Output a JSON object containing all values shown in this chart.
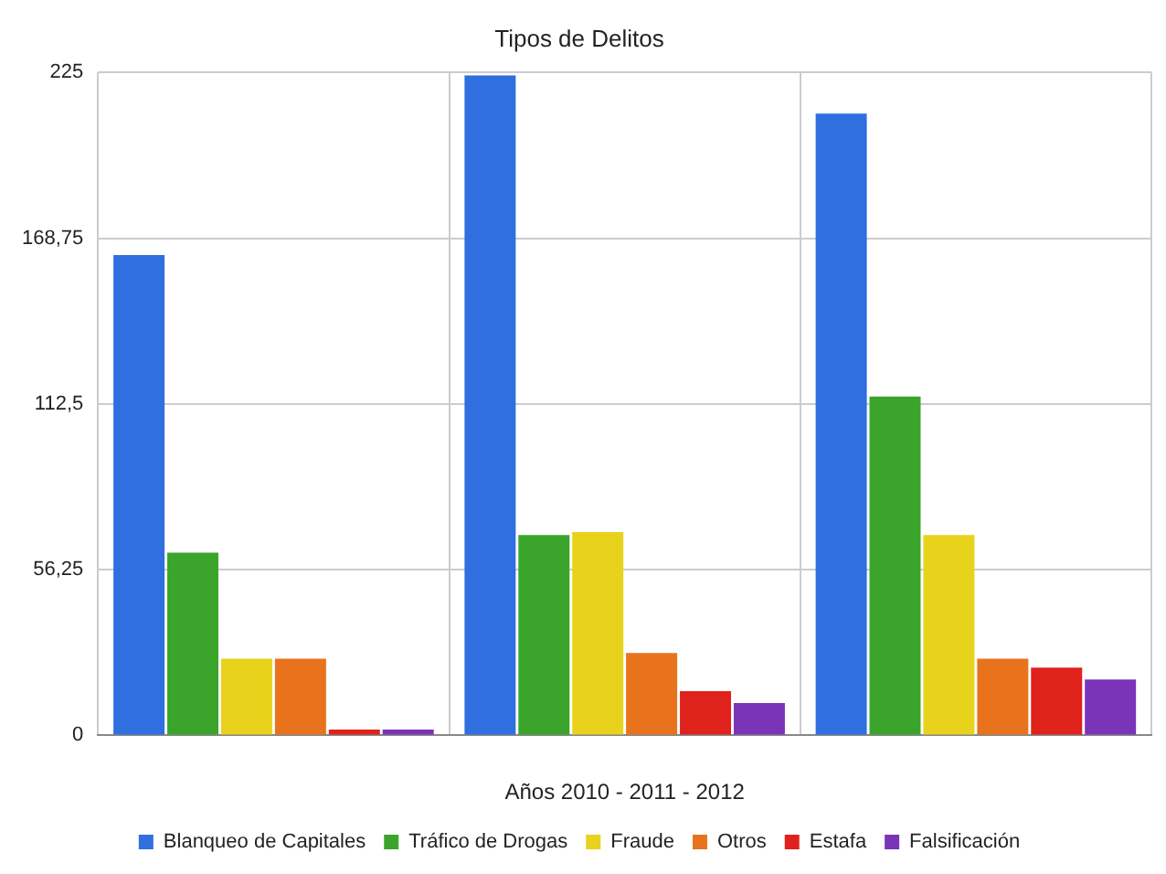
{
  "chart_data": {
    "type": "bar",
    "title": "Tipos de Delitos",
    "xlabel": "Años 2010 - 2011 - 2012",
    "categories": [
      null,
      null,
      null
    ],
    "series": [
      {
        "name": "Blanqueo de Capitales",
        "color": "#2f6fe0",
        "values": [
          163,
          224,
          211
        ]
      },
      {
        "name": "Tráfico de Drogas",
        "color": "#3aa52a",
        "values": [
          62,
          68,
          115
        ]
      },
      {
        "name": "Fraude",
        "color": "#e8d21c",
        "values": [
          26,
          69,
          68
        ]
      },
      {
        "name": "Otros",
        "color": "#e8731c",
        "values": [
          26,
          28,
          26
        ]
      },
      {
        "name": "Estafa",
        "color": "#e0221c",
        "values": [
          2,
          15,
          23
        ]
      },
      {
        "name": "Falsificación",
        "color": "#7a34b8",
        "values": [
          2,
          11,
          19
        ]
      }
    ],
    "ylim": [
      0,
      225
    ],
    "yticks": [
      0,
      {
        "value": 56.25,
        "label": "56,25"
      },
      {
        "value": 112.5,
        "label": "112,5"
      },
      {
        "value": 168.75,
        "label": "168,75"
      },
      225
    ],
    "grid": true,
    "legend": "bottom"
  }
}
